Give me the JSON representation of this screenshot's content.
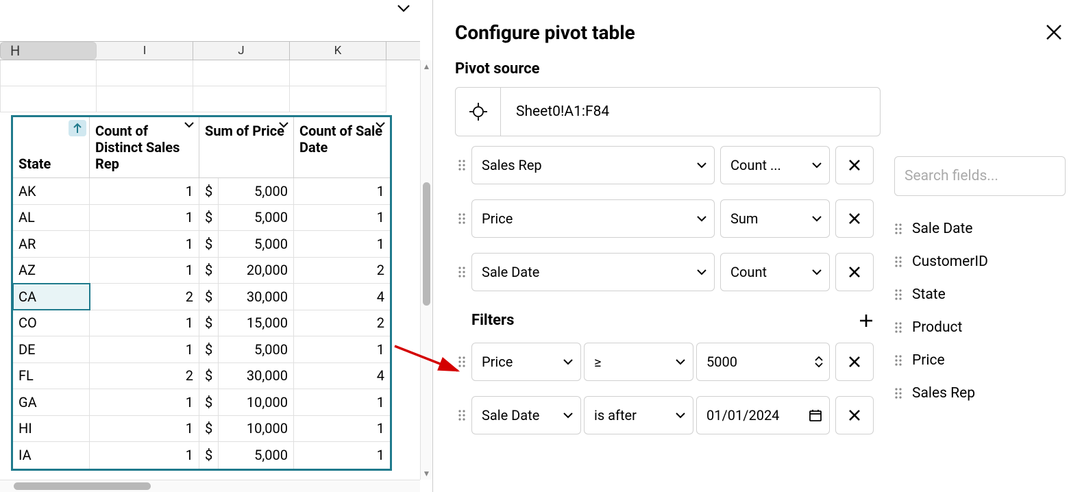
{
  "sheet": {
    "columns": [
      "H",
      "I",
      "J",
      "K"
    ],
    "selected_col_index": 0
  },
  "pivot_table": {
    "headers": {
      "state": "State",
      "count_rep": "Count of Distinct Sales Rep",
      "sum_price": "Sum of Price",
      "count_date": "Count of Sale Date"
    },
    "rows": [
      {
        "state": "AK",
        "cnt": "1",
        "cur": "$",
        "price": "5,000",
        "dcnt": "1"
      },
      {
        "state": "AL",
        "cnt": "1",
        "cur": "$",
        "price": "5,000",
        "dcnt": "1"
      },
      {
        "state": "AR",
        "cnt": "1",
        "cur": "$",
        "price": "5,000",
        "dcnt": "1"
      },
      {
        "state": "AZ",
        "cnt": "1",
        "cur": "$",
        "price": "20,000",
        "dcnt": "2"
      },
      {
        "state": "CA",
        "cnt": "2",
        "cur": "$",
        "price": "30,000",
        "dcnt": "4",
        "selected": true
      },
      {
        "state": "CO",
        "cnt": "1",
        "cur": "$",
        "price": "15,000",
        "dcnt": "2"
      },
      {
        "state": "DE",
        "cnt": "1",
        "cur": "$",
        "price": "5,000",
        "dcnt": "1"
      },
      {
        "state": "FL",
        "cnt": "2",
        "cur": "$",
        "price": "30,000",
        "dcnt": "4"
      },
      {
        "state": "GA",
        "cnt": "1",
        "cur": "$",
        "price": "10,000",
        "dcnt": "1"
      },
      {
        "state": "HI",
        "cnt": "1",
        "cur": "$",
        "price": "10,000",
        "dcnt": "1"
      },
      {
        "state": "IA",
        "cnt": "1",
        "cur": "$",
        "price": "5,000",
        "dcnt": "1"
      }
    ],
    "border_color": "#1f7a8c"
  },
  "config": {
    "title": "Configure pivot table",
    "source_label": "Pivot source",
    "source_value": "Sheet0!A1:F84",
    "value_fields": [
      {
        "field": "Sales Rep",
        "agg": "Count ..."
      },
      {
        "field": "Price",
        "agg": "Sum"
      },
      {
        "field": "Sale Date",
        "agg": "Count"
      }
    ],
    "filters_label": "Filters",
    "filters": [
      {
        "field": "Price",
        "op": "≥",
        "value": "5000",
        "type": "number"
      },
      {
        "field": "Sale Date",
        "op": "is after",
        "value": "01/01/2024",
        "type": "date"
      }
    ],
    "search_placeholder": "Search fields...",
    "available_fields": [
      "Sale Date",
      "CustomerID",
      "State",
      "Product",
      "Price",
      "Sales Rep"
    ]
  },
  "arrow_color": "#d40000"
}
